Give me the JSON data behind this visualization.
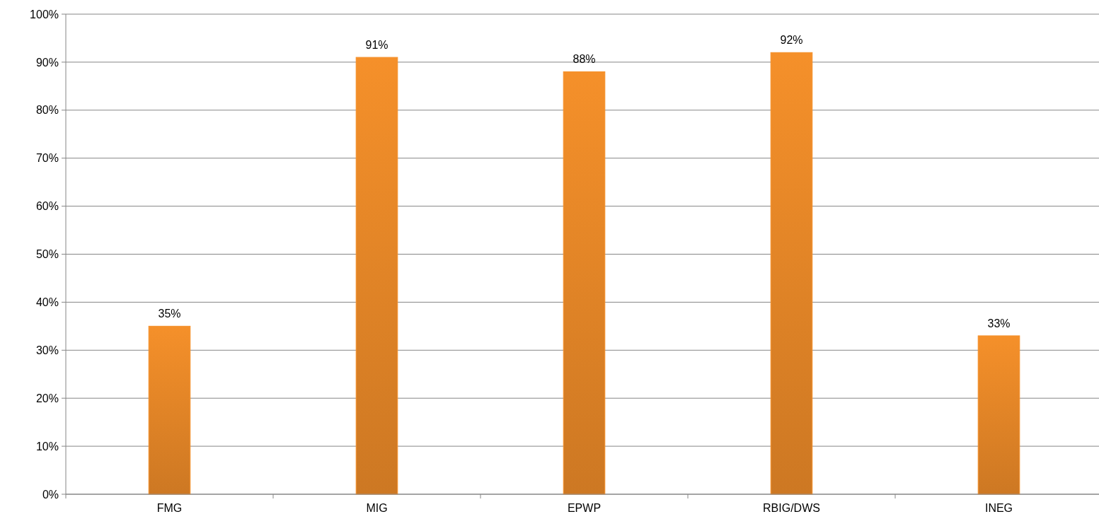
{
  "chart_data": {
    "type": "bar",
    "categories": [
      "FMG",
      "MIG",
      "EPWP",
      "RBIG/DWS",
      "INEG"
    ],
    "values": [
      35,
      91,
      88,
      92,
      33
    ],
    "color": "#f5902a",
    "ylim": [
      0,
      100
    ],
    "yticks": [
      {
        "value": 0,
        "label": "0%"
      },
      {
        "value": 10,
        "label": "10%"
      },
      {
        "value": 20,
        "label": "20%"
      },
      {
        "value": 30,
        "label": "30%"
      },
      {
        "value": 40,
        "label": "40%"
      },
      {
        "value": 50,
        "label": "50%"
      },
      {
        "value": 60,
        "label": "60%"
      },
      {
        "value": 70,
        "label": "70%"
      },
      {
        "value": 80,
        "label": "80%"
      },
      {
        "value": 90,
        "label": "90%"
      },
      {
        "value": 100,
        "label": "100%"
      }
    ],
    "value_labels": [
      "35%",
      "91%",
      "88%",
      "92%",
      "33%"
    ],
    "grid": "y"
  }
}
